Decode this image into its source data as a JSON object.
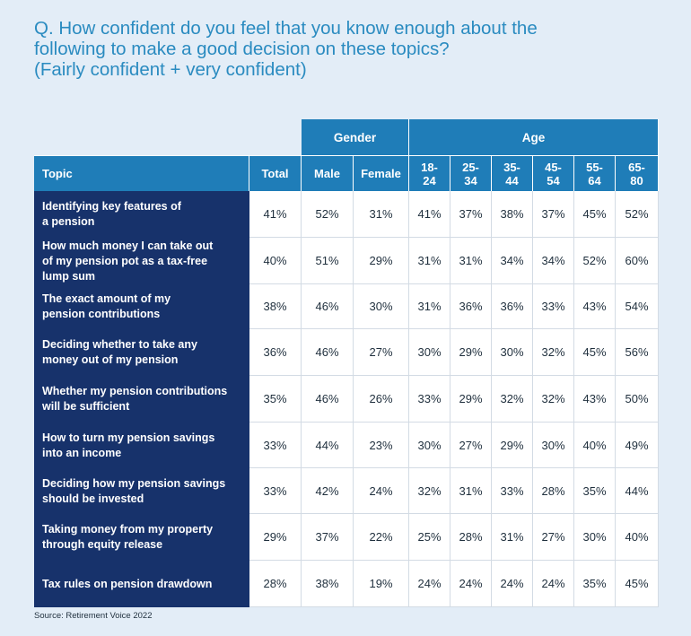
{
  "title_lines": [
    "Q. How confident do you feel that you know enough about the",
    "following to make a good decision on these topics?",
    "(Fairly confident + very confident)"
  ],
  "groups": {
    "gender": "Gender",
    "age": "Age"
  },
  "columns": [
    "Topic",
    "Total",
    "Male",
    "Female",
    "18-\n24",
    "25-\n34",
    "35-\n44",
    "45-\n54",
    "55-\n64",
    "65-\n80"
  ],
  "rows": [
    {
      "topic": "Identifying key features of\na pension",
      "values": [
        "41%",
        "52%",
        "31%",
        "41%",
        "37%",
        "38%",
        "37%",
        "45%",
        "52%"
      ]
    },
    {
      "topic": "How much money I can take out\nof my pension pot as a tax-free\nlump sum",
      "values": [
        "40%",
        "51%",
        "29%",
        "31%",
        "31%",
        "34%",
        "34%",
        "52%",
        "60%"
      ]
    },
    {
      "topic": "The exact amount of my\npension contributions",
      "values": [
        "38%",
        "46%",
        "30%",
        "31%",
        "36%",
        "36%",
        "33%",
        "43%",
        "54%"
      ]
    },
    {
      "topic": "Deciding whether to take any\nmoney out of my pension",
      "values": [
        "36%",
        "46%",
        "27%",
        "30%",
        "29%",
        "30%",
        "32%",
        "45%",
        "56%"
      ]
    },
    {
      "topic": "Whether my pension contributions\nwill be sufficient",
      "values": [
        "35%",
        "46%",
        "26%",
        "33%",
        "29%",
        "32%",
        "32%",
        "43%",
        "50%"
      ]
    },
    {
      "topic": "How to turn my pension savings\ninto an income",
      "values": [
        "33%",
        "44%",
        "23%",
        "30%",
        "27%",
        "29%",
        "30%",
        "40%",
        "49%"
      ]
    },
    {
      "topic": "Deciding how my pension savings\nshould be invested",
      "values": [
        "33%",
        "42%",
        "24%",
        "32%",
        "31%",
        "33%",
        "28%",
        "35%",
        "44%"
      ]
    },
    {
      "topic": "Taking money from my property\nthrough equity release",
      "values": [
        "29%",
        "37%",
        "22%",
        "25%",
        "28%",
        "31%",
        "27%",
        "30%",
        "40%"
      ]
    },
    {
      "topic": "Tax rules on pension drawdown",
      "values": [
        "28%",
        "38%",
        "19%",
        "24%",
        "24%",
        "24%",
        "24%",
        "35%",
        "45%"
      ]
    }
  ],
  "footer": "Source: Retirement Voice 2022",
  "chart_data": {
    "type": "table",
    "title": "Q. How confident do you feel that you know enough about the following to make a good decision on these topics? (Fairly confident + very confident)",
    "column_groups": [
      {
        "name": "Gender",
        "columns": [
          "Male",
          "Female"
        ]
      },
      {
        "name": "Age",
        "columns": [
          "18-24",
          "25-34",
          "35-44",
          "45-54",
          "55-64",
          "65-80"
        ]
      }
    ],
    "columns": [
      "Total",
      "Male",
      "Female",
      "18-24",
      "25-34",
      "35-44",
      "45-54",
      "55-64",
      "65-80"
    ],
    "rows": [
      {
        "topic": "Identifying key features of a pension",
        "values": [
          41,
          52,
          31,
          41,
          37,
          38,
          37,
          45,
          52
        ]
      },
      {
        "topic": "How much money I can take out of my pension pot as a tax-free lump sum",
        "values": [
          40,
          51,
          29,
          31,
          31,
          34,
          34,
          52,
          60
        ]
      },
      {
        "topic": "The exact amount of my pension contributions",
        "values": [
          38,
          46,
          30,
          31,
          36,
          36,
          33,
          43,
          54
        ]
      },
      {
        "topic": "Deciding whether to take any money out of my pension",
        "values": [
          36,
          46,
          27,
          30,
          29,
          30,
          32,
          45,
          56
        ]
      },
      {
        "topic": "Whether my pension contributions will be sufficient",
        "values": [
          35,
          46,
          26,
          33,
          29,
          32,
          32,
          43,
          50
        ]
      },
      {
        "topic": "How to turn my pension savings into an income",
        "values": [
          33,
          44,
          23,
          30,
          27,
          29,
          30,
          40,
          49
        ]
      },
      {
        "topic": "Deciding how my pension savings should be invested",
        "values": [
          33,
          42,
          24,
          32,
          31,
          33,
          28,
          35,
          44
        ]
      },
      {
        "topic": "Taking money from my property through equity release",
        "values": [
          29,
          37,
          22,
          25,
          28,
          31,
          27,
          30,
          40
        ]
      },
      {
        "topic": "Tax rules on pension drawdown",
        "values": [
          28,
          38,
          19,
          24,
          24,
          24,
          24,
          35,
          45
        ]
      }
    ],
    "unit": "%",
    "colors": {
      "header": "#1f7db8",
      "topic_column": "#17326b",
      "title": "#2a8bc0",
      "background": "#e3edf7"
    }
  }
}
